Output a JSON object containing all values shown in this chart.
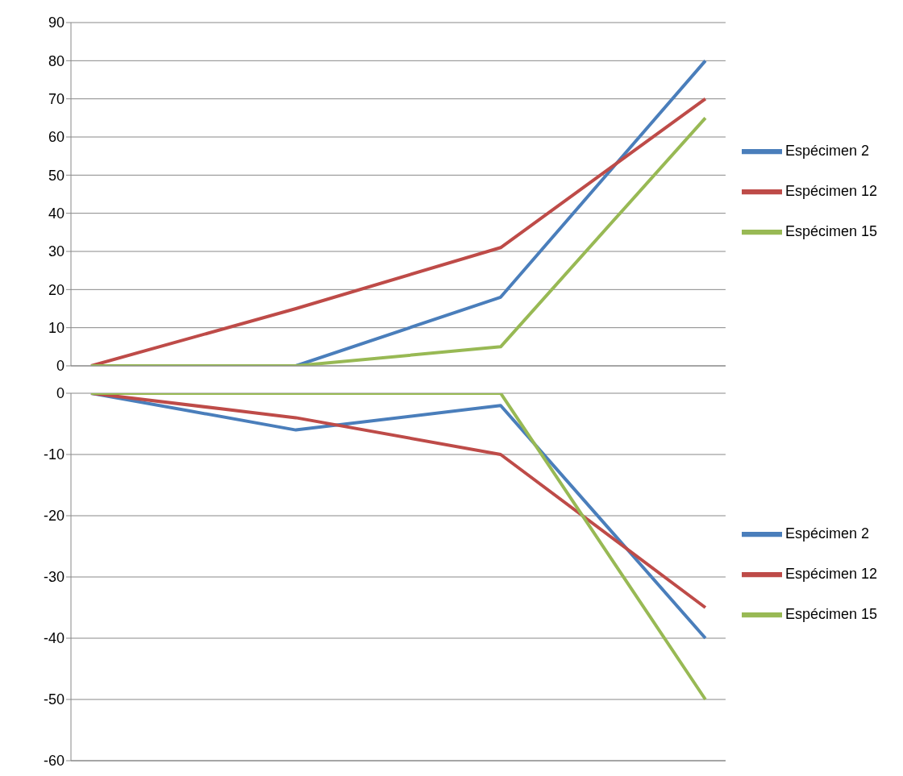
{
  "chart_data": [
    {
      "type": "line",
      "categories": [
        null,
        null,
        null,
        null
      ],
      "series": [
        {
          "name": "Espécimen 2",
          "color": "#4a7ebb",
          "values": [
            0,
            0,
            18,
            80
          ]
        },
        {
          "name": "Espécimen 12",
          "color": "#be4b48",
          "values": [
            0,
            15,
            31,
            70
          ]
        },
        {
          "name": "Espécimen 15",
          "color": "#98b954",
          "values": [
            0,
            0,
            5,
            65
          ]
        }
      ],
      "ylim": [
        0,
        90
      ],
      "yticks": [
        0,
        10,
        20,
        30,
        40,
        50,
        60,
        70,
        80,
        90
      ],
      "grid": "y",
      "legend": "right",
      "marker": "none",
      "line_style": "solid",
      "tick_labels": "y"
    },
    {
      "type": "line",
      "categories": [
        null,
        null,
        null,
        null
      ],
      "series": [
        {
          "name": "Espécimen 2",
          "color": "#4a7ebb",
          "values": [
            0,
            -6,
            -2,
            -40
          ]
        },
        {
          "name": "Espécimen 12",
          "color": "#be4b48",
          "values": [
            0,
            -4,
            -10,
            -35
          ]
        },
        {
          "name": "Espécimen 15",
          "color": "#98b954",
          "values": [
            0,
            0,
            0,
            -50
          ]
        }
      ],
      "ylim": [
        -60,
        0
      ],
      "yticks": [
        -60,
        -50,
        -40,
        -30,
        -20,
        -10,
        0
      ],
      "grid": "y",
      "legend": "right",
      "marker": "none",
      "line_style": "solid",
      "tick_labels": "y"
    }
  ]
}
